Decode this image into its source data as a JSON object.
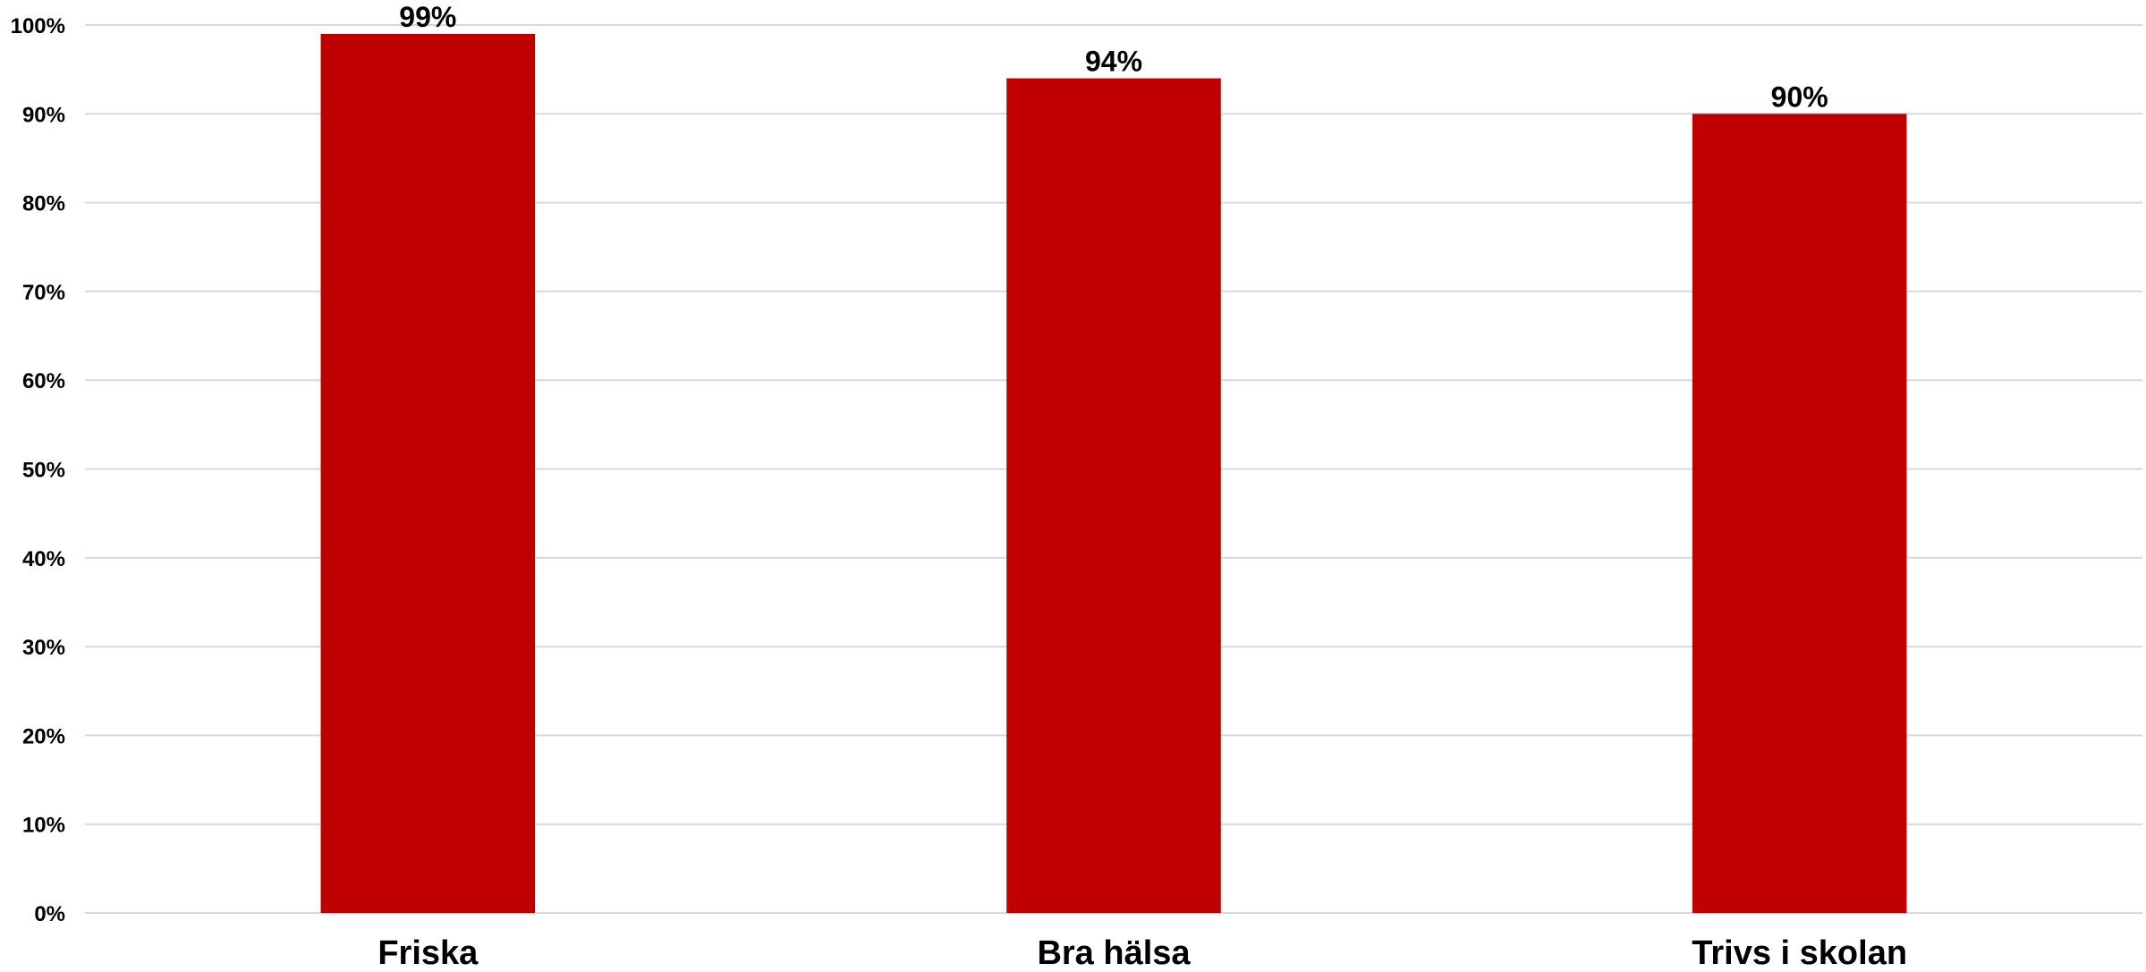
{
  "chart_data": {
    "type": "bar",
    "title": "",
    "xlabel": "",
    "ylabel": "",
    "categories": [
      "Friska",
      "Bra hälsa",
      "Trivs i skolan"
    ],
    "values": [
      99,
      94,
      90
    ],
    "data_labels": [
      "99%",
      "94%",
      "90%"
    ],
    "ylim": [
      0,
      100
    ],
    "y_ticks": [
      "0%",
      "10%",
      "20%",
      "30%",
      "40%",
      "50%",
      "60%",
      "70%",
      "80%",
      "90%",
      "100%"
    ],
    "grid": true,
    "legend": "none",
    "bar_color": "#c00000",
    "gridline_color": "#d9d9d9"
  }
}
